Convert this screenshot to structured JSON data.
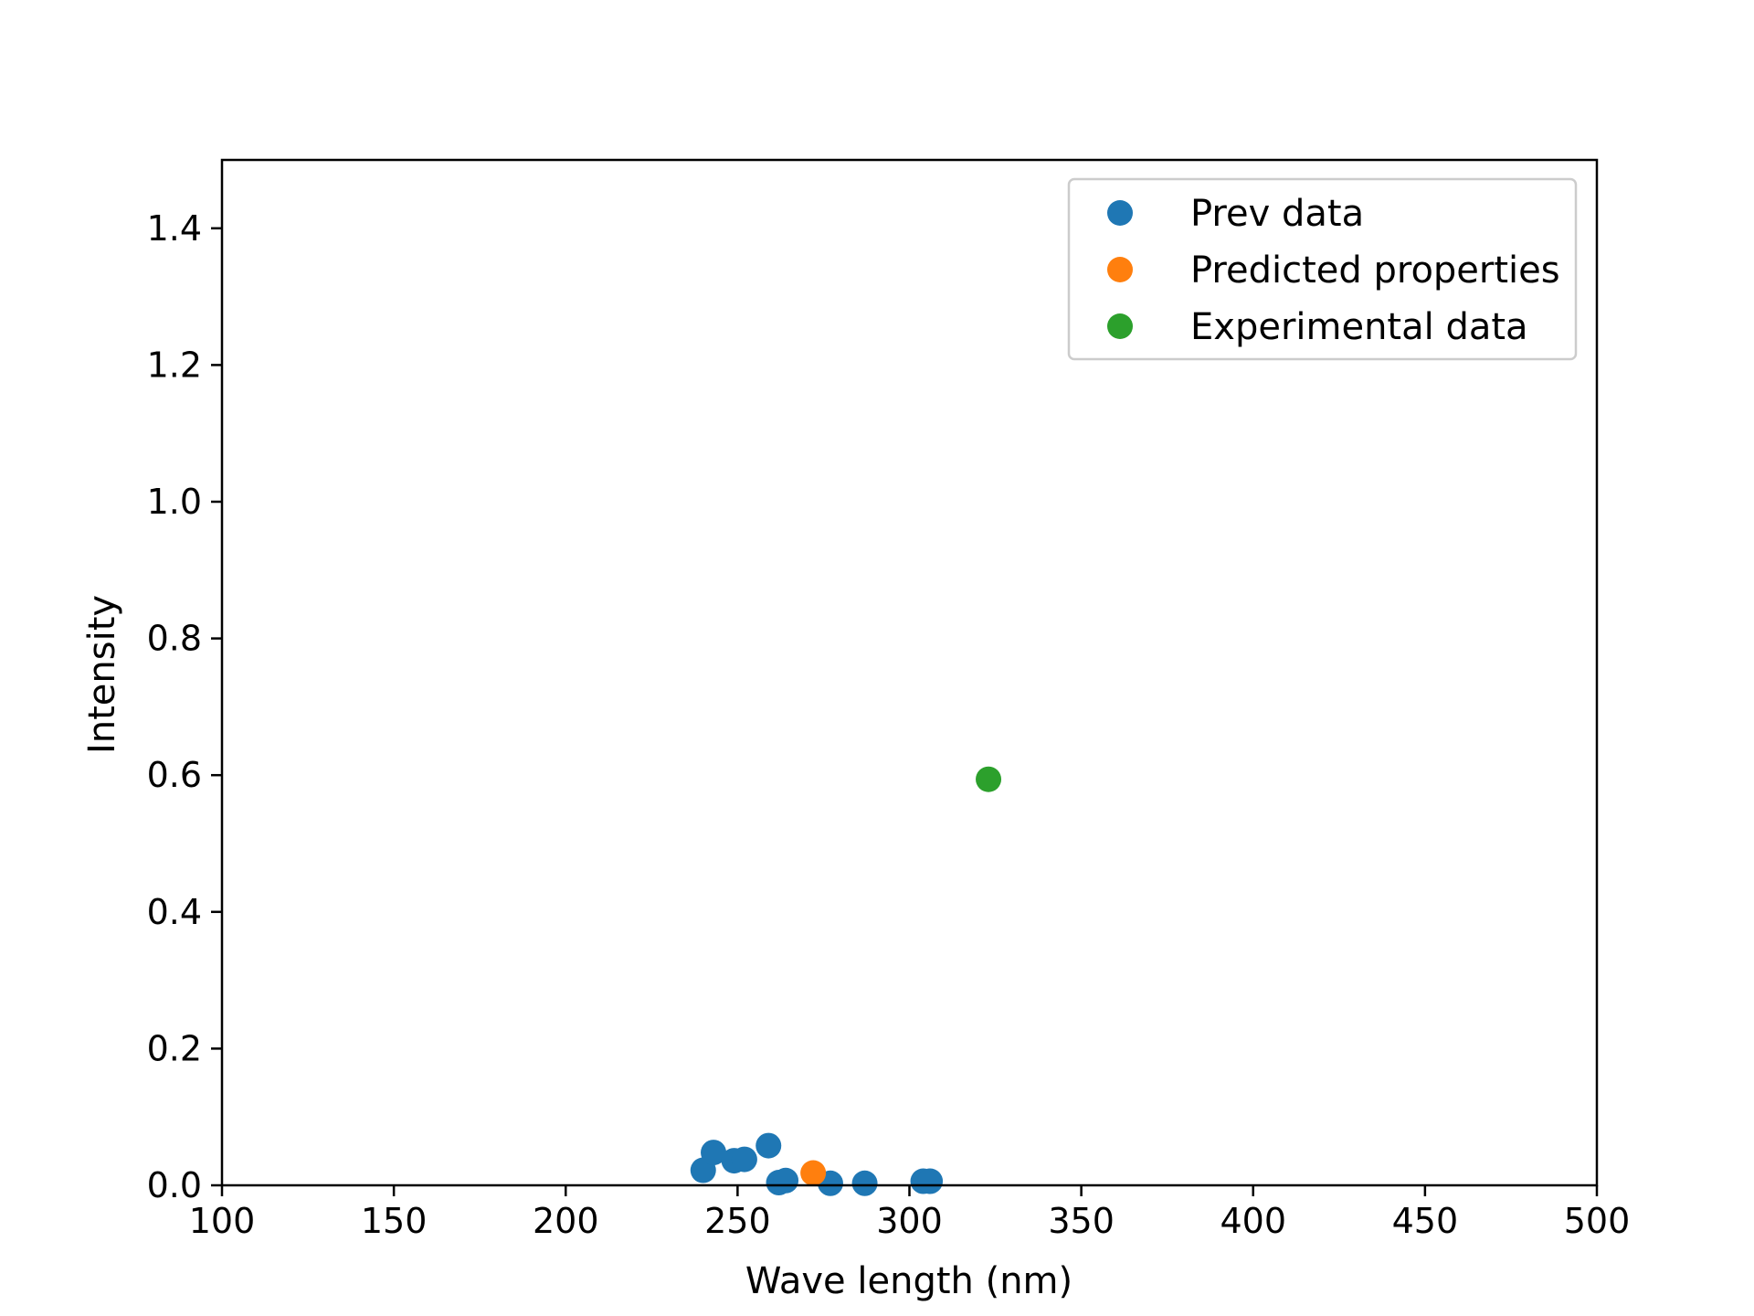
{
  "chart_data": {
    "type": "scatter",
    "title": "",
    "xlabel": "Wave length (nm)",
    "ylabel": "Intensity",
    "xlim": [
      100,
      500
    ],
    "ylim": [
      0,
      1.5
    ],
    "xticks": [
      100,
      150,
      200,
      250,
      300,
      350,
      400,
      450,
      500
    ],
    "yticks": [
      0.0,
      0.2,
      0.4,
      0.6,
      0.8,
      1.0,
      1.2,
      1.4
    ],
    "xtick_labels": [
      "100",
      "150",
      "200",
      "250",
      "300",
      "350",
      "400",
      "450",
      "500"
    ],
    "ytick_labels": [
      "0.0",
      "0.2",
      "0.4",
      "0.6",
      "0.8",
      "1.0",
      "1.2",
      "1.4"
    ],
    "grid": false,
    "legend_position": "top-right",
    "series": [
      {
        "name": "Prev data",
        "color": "#1f77b4",
        "points": [
          {
            "x": 240,
            "y": 0.022
          },
          {
            "x": 243,
            "y": 0.048
          },
          {
            "x": 249,
            "y": 0.036
          },
          {
            "x": 252,
            "y": 0.038
          },
          {
            "x": 259,
            "y": 0.058
          },
          {
            "x": 262,
            "y": 0.004
          },
          {
            "x": 264,
            "y": 0.007
          },
          {
            "x": 277,
            "y": 0.003
          },
          {
            "x": 287,
            "y": 0.003
          },
          {
            "x": 304,
            "y": 0.006
          },
          {
            "x": 306,
            "y": 0.006
          }
        ]
      },
      {
        "name": "Predicted properties",
        "color": "#ff7f0e",
        "points": [
          {
            "x": 272,
            "y": 0.018
          }
        ]
      },
      {
        "name": "Experimental data",
        "color": "#2ca02c",
        "points": [
          {
            "x": 323,
            "y": 0.594
          }
        ]
      }
    ]
  }
}
